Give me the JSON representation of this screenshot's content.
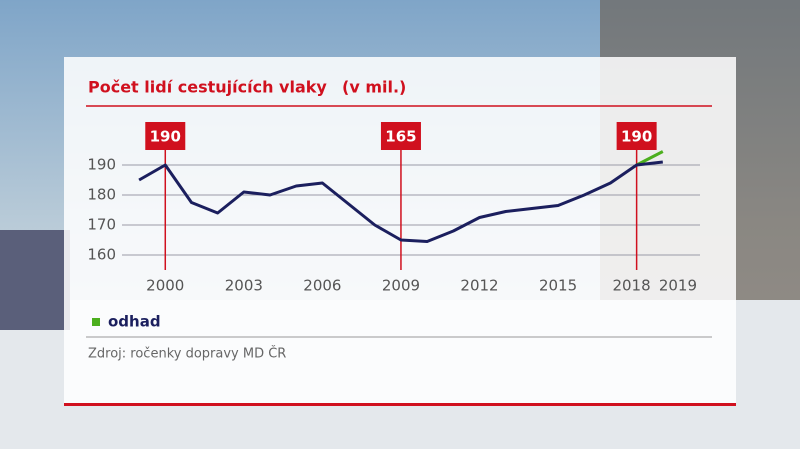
{
  "chart_data": {
    "type": "line",
    "title": "Počet lidí cestujících vlaky",
    "subtitle": "(v mil.)",
    "x": [
      1999,
      2000,
      2001,
      2002,
      2003,
      2004,
      2005,
      2006,
      2007,
      2008,
      2009,
      2010,
      2011,
      2012,
      2013,
      2014,
      2015,
      2016,
      2017,
      2018,
      2019
    ],
    "values": [
      185,
      190,
      177.5,
      174,
      181,
      180,
      183,
      184,
      177,
      170,
      165,
      164.5,
      168,
      172.5,
      174.5,
      175.5,
      176.5,
      180,
      184,
      190,
      191
    ],
    "color": "#1b1f5e",
    "estimate": {
      "name": "odhad",
      "color": "#4caf1e",
      "x": [
        2018,
        2019
      ],
      "values": [
        190,
        194.5
      ]
    },
    "xlim": [
      1998.5,
      2020
    ],
    "xticks": [
      2000,
      2003,
      2006,
      2009,
      2012,
      2015,
      2018,
      2019
    ],
    "ylim": [
      155,
      198
    ],
    "yticks": [
      160,
      170,
      180,
      190
    ],
    "grid": true,
    "annotations": [
      {
        "x": 2000,
        "value": 190
      },
      {
        "x": 2009,
        "value": 165
      },
      {
        "x": 2018,
        "value": 190
      }
    ],
    "source": "Zdroj: ročenky dopravy MD ČR"
  }
}
